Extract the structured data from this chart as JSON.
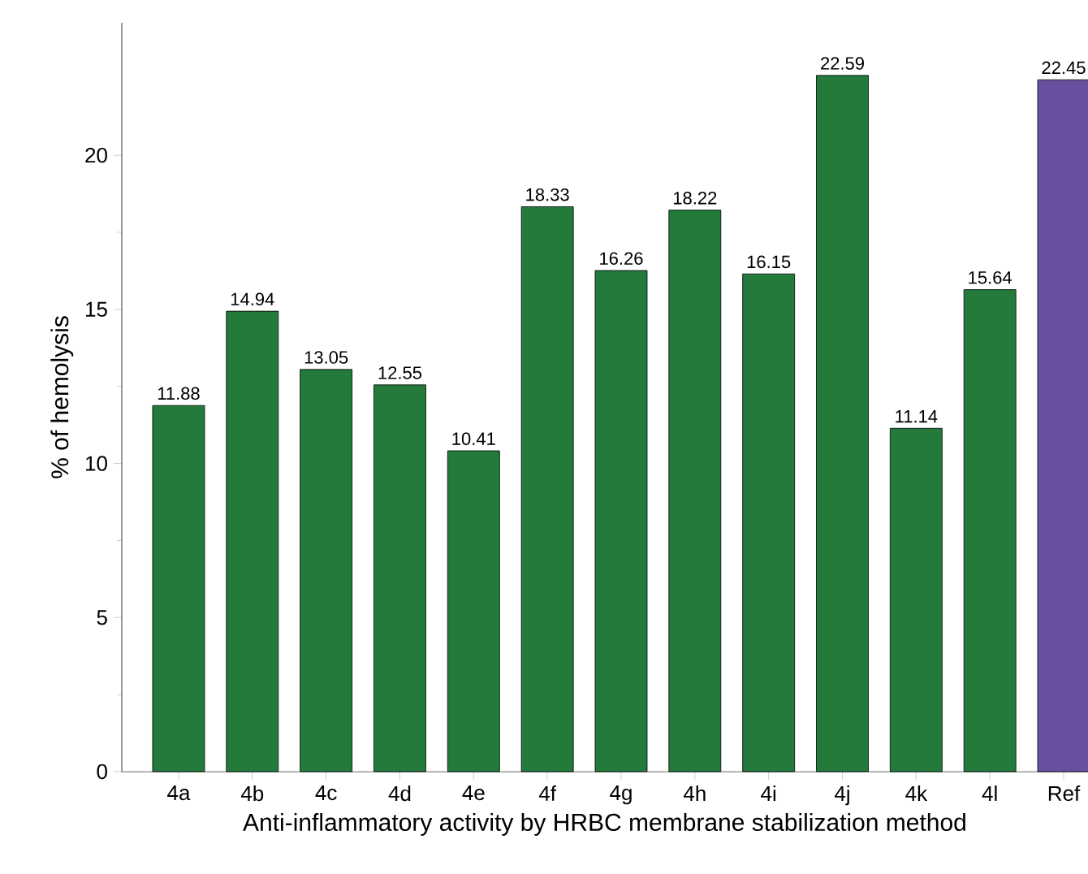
{
  "chart_data": {
    "type": "bar",
    "xlabel": "Anti-inflammatory activity by HRBC membrane stabilization method",
    "ylabel": "% of hemolysis",
    "categories": [
      "4a",
      "4b",
      "4c",
      "4d",
      "4e",
      "4f",
      "4g",
      "4h",
      "4i",
      "4j",
      "4k",
      "4l",
      "Ref"
    ],
    "values": [
      11.88,
      14.94,
      13.05,
      12.55,
      10.41,
      18.33,
      16.26,
      18.22,
      16.15,
      22.59,
      11.14,
      15.64,
      22.45
    ],
    "colors": [
      "#237a3b",
      "#237a3b",
      "#237a3b",
      "#237a3b",
      "#237a3b",
      "#237a3b",
      "#237a3b",
      "#237a3b",
      "#237a3b",
      "#237a3b",
      "#237a3b",
      "#237a3b",
      "#6a4fa0"
    ],
    "ylim": [
      0,
      24.3
    ],
    "yticks": [
      0,
      5,
      10,
      15,
      20
    ],
    "data_labels": true
  }
}
